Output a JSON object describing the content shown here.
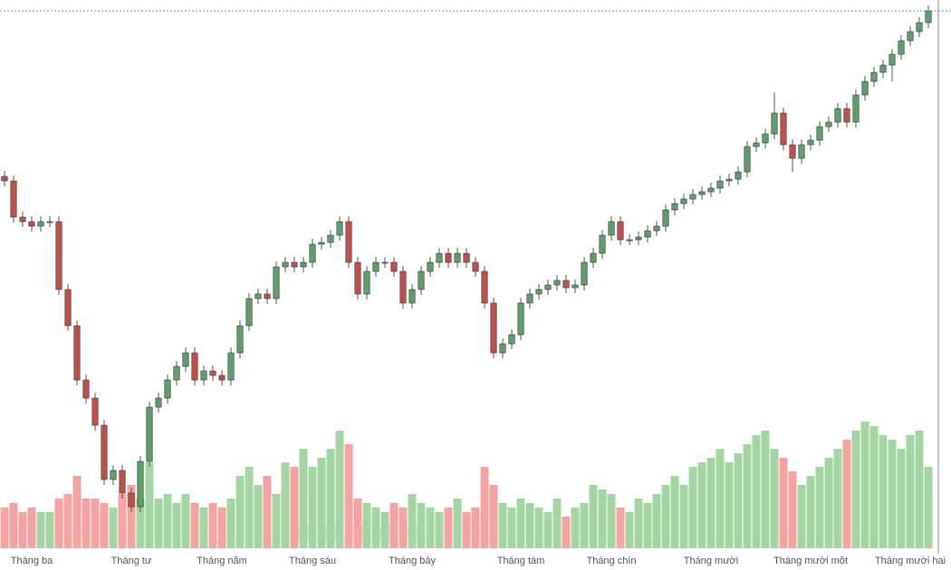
{
  "chart_data": {
    "type": "candlestick",
    "categories": [
      null,
      null,
      null,
      "Tháng ba",
      null,
      null,
      null,
      null,
      null,
      null,
      null,
      null,
      null,
      null,
      "Tháng tư",
      null,
      null,
      null,
      null,
      null,
      null,
      null,
      null,
      null,
      "Tháng năm",
      null,
      null,
      null,
      null,
      null,
      null,
      null,
      null,
      null,
      "Tháng sáu",
      null,
      null,
      null,
      null,
      null,
      null,
      null,
      null,
      null,
      null,
      "Tháng bảy",
      null,
      null,
      null,
      null,
      null,
      null,
      null,
      null,
      null,
      null,
      null,
      "Tháng tám",
      null,
      null,
      null,
      null,
      null,
      null,
      null,
      null,
      null,
      "Tháng chín",
      null,
      null,
      null,
      null,
      null,
      null,
      null,
      null,
      null,
      null,
      "Tháng mười",
      null,
      null,
      null,
      null,
      null,
      null,
      null,
      null,
      null,
      null,
      "Tháng mười một",
      null,
      null,
      null,
      null,
      null,
      null,
      null,
      null,
      null,
      null,
      "Tháng mười hai",
      null,
      null
    ],
    "candles": [
      [
        425,
        431,
        414,
        420
      ],
      [
        420,
        426,
        374,
        380
      ],
      [
        380,
        386,
        369,
        375
      ],
      [
        375,
        381,
        364,
        370
      ],
      [
        370,
        381,
        364,
        375
      ],
      [
        375,
        381,
        369,
        375
      ],
      [
        375,
        381,
        294,
        300
      ],
      [
        300,
        306,
        254,
        260
      ],
      [
        260,
        266,
        194,
        200
      ],
      [
        200,
        206,
        174,
        180
      ],
      [
        180,
        186,
        144,
        150
      ],
      [
        150,
        156,
        84,
        90
      ],
      [
        90,
        106,
        84,
        100
      ],
      [
        100,
        106,
        69,
        75
      ],
      [
        75,
        81,
        54,
        60
      ],
      [
        60,
        116,
        54,
        110
      ],
      [
        110,
        176,
        104,
        170
      ],
      [
        170,
        186,
        164,
        180
      ],
      [
        180,
        206,
        174,
        200
      ],
      [
        200,
        221,
        194,
        215
      ],
      [
        215,
        236,
        209,
        230
      ],
      [
        230,
        236,
        194,
        200
      ],
      [
        200,
        216,
        194,
        210
      ],
      [
        210,
        216,
        199,
        205
      ],
      [
        205,
        211,
        194,
        200
      ],
      [
        200,
        236,
        194,
        230
      ],
      [
        230,
        266,
        224,
        260
      ],
      [
        260,
        296,
        254,
        290
      ],
      [
        290,
        301,
        284,
        295
      ],
      [
        295,
        301,
        284,
        290
      ],
      [
        290,
        331,
        284,
        325
      ],
      [
        325,
        336,
        319,
        330
      ],
      [
        330,
        336,
        319,
        325
      ],
      [
        325,
        336,
        319,
        330
      ],
      [
        330,
        356,
        324,
        350
      ],
      [
        350,
        358,
        344,
        352
      ],
      [
        352,
        366,
        346,
        360
      ],
      [
        360,
        381,
        354,
        375
      ],
      [
        375,
        381,
        324,
        330
      ],
      [
        330,
        336,
        289,
        295
      ],
      [
        295,
        326,
        289,
        320
      ],
      [
        320,
        336,
        314,
        330
      ],
      [
        330,
        336,
        324,
        330
      ],
      [
        330,
        336,
        314,
        320
      ],
      [
        320,
        326,
        279,
        285
      ],
      [
        285,
        306,
        279,
        300
      ],
      [
        300,
        326,
        294,
        320
      ],
      [
        320,
        336,
        314,
        330
      ],
      [
        330,
        346,
        324,
        340
      ],
      [
        340,
        346,
        324,
        330
      ],
      [
        330,
        346,
        324,
        340
      ],
      [
        340,
        346,
        324,
        330
      ],
      [
        330,
        336,
        314,
        320
      ],
      [
        320,
        326,
        279,
        285
      ],
      [
        285,
        291,
        224,
        230
      ],
      [
        230,
        246,
        224,
        240
      ],
      [
        240,
        256,
        234,
        250
      ],
      [
        250,
        291,
        244,
        285
      ],
      [
        285,
        301,
        279,
        295
      ],
      [
        295,
        306,
        289,
        300
      ],
      [
        300,
        311,
        294,
        305
      ],
      [
        305,
        316,
        299,
        310
      ],
      [
        310,
        316,
        296,
        302
      ],
      [
        302,
        311,
        296,
        305
      ],
      [
        305,
        336,
        299,
        330
      ],
      [
        330,
        346,
        324,
        340
      ],
      [
        340,
        366,
        334,
        360
      ],
      [
        360,
        381,
        354,
        375
      ],
      [
        375,
        381,
        349,
        355
      ],
      [
        355,
        361,
        349,
        355
      ],
      [
        355,
        364,
        349,
        358
      ],
      [
        358,
        371,
        352,
        365
      ],
      [
        365,
        376,
        359,
        370
      ],
      [
        370,
        394,
        364,
        388
      ],
      [
        388,
        401,
        382,
        395
      ],
      [
        395,
        406,
        389,
        400
      ],
      [
        400,
        411,
        394,
        405
      ],
      [
        405,
        414,
        399,
        408
      ],
      [
        408,
        418,
        402,
        412
      ],
      [
        412,
        426,
        406,
        420
      ],
      [
        420,
        428,
        414,
        422
      ],
      [
        422,
        436,
        416,
        430
      ],
      [
        430,
        464,
        424,
        458
      ],
      [
        458,
        468,
        452,
        462
      ],
      [
        462,
        478,
        456,
        472
      ],
      [
        472,
        518,
        466,
        495
      ],
      [
        495,
        501,
        454,
        460
      ],
      [
        460,
        466,
        430,
        445
      ],
      [
        445,
        466,
        439,
        460
      ],
      [
        460,
        471,
        454,
        465
      ],
      [
        465,
        486,
        459,
        480
      ],
      [
        480,
        491,
        474,
        485
      ],
      [
        485,
        506,
        479,
        500
      ],
      [
        500,
        506,
        479,
        485
      ],
      [
        485,
        521,
        479,
        515
      ],
      [
        515,
        536,
        509,
        530
      ],
      [
        530,
        546,
        524,
        540
      ],
      [
        540,
        554,
        534,
        548
      ],
      [
        548,
        566,
        530,
        560
      ],
      [
        560,
        581,
        554,
        575
      ],
      [
        575,
        591,
        569,
        585
      ],
      [
        585,
        601,
        579,
        595
      ],
      [
        595,
        614,
        589,
        608
      ]
    ],
    "volume": [
      45,
      50,
      40,
      45,
      40,
      40,
      55,
      60,
      80,
      55,
      55,
      50,
      45,
      60,
      70,
      55,
      95,
      55,
      60,
      50,
      60,
      50,
      45,
      50,
      45,
      55,
      80,
      90,
      70,
      80,
      60,
      95,
      90,
      110,
      90,
      100,
      110,
      130,
      115,
      55,
      50,
      45,
      40,
      50,
      45,
      60,
      50,
      45,
      40,
      45,
      55,
      40,
      45,
      90,
      70,
      50,
      45,
      55,
      50,
      45,
      40,
      55,
      35,
      45,
      50,
      70,
      65,
      60,
      45,
      40,
      55,
      50,
      60,
      70,
      80,
      70,
      90,
      95,
      100,
      110,
      95,
      105,
      115,
      125,
      130,
      110,
      100,
      85,
      70,
      80,
      90,
      100,
      110,
      120,
      130,
      140,
      135,
      125,
      120,
      110,
      125,
      130,
      90
    ],
    "ylim": [
      0,
      620
    ],
    "volume_ylim": [
      0,
      160
    ],
    "up_color": "#5e9e6e",
    "down_color": "#c0504d",
    "up_volume_color": "#a3d6a3",
    "down_volume_color": "#f5a3a3"
  }
}
